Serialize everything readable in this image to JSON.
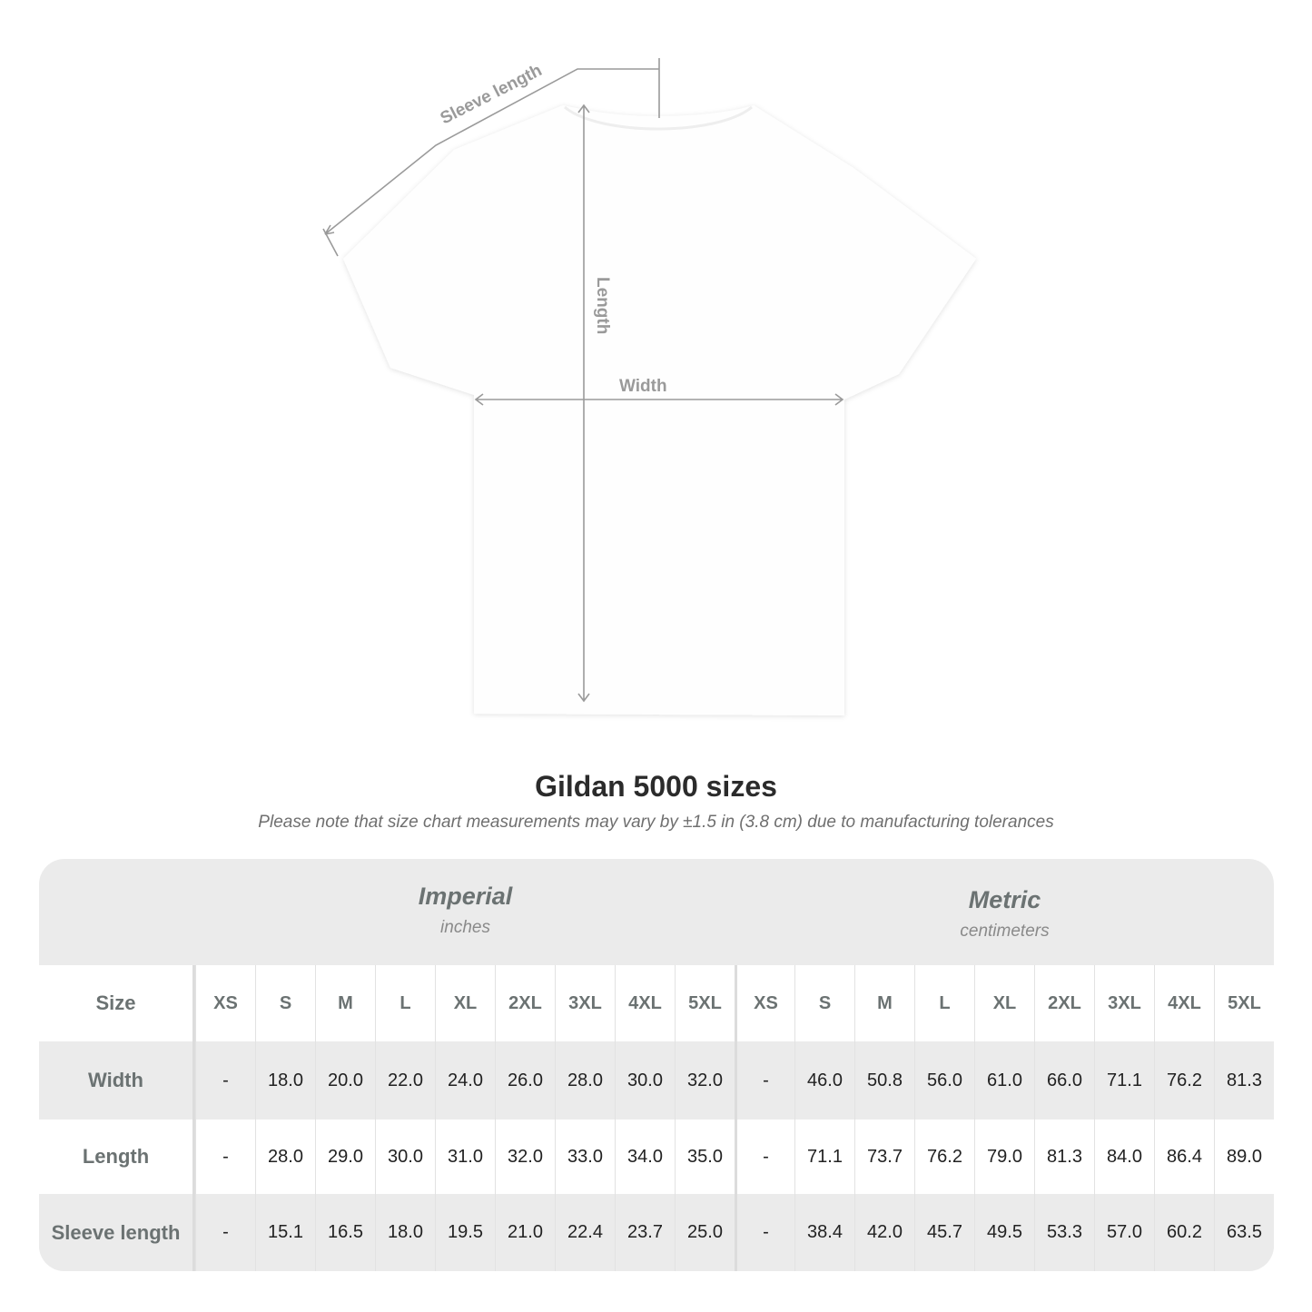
{
  "diagram": {
    "labels": {
      "sleeve": "Sleeve length",
      "length": "Length",
      "width": "Width"
    },
    "line_color": "#9a9a9a",
    "shirt_color": "#ffffff"
  },
  "title": "Gildan 5000 sizes",
  "note": "Please note that size chart measurements may vary by ±1.5 in (3.8 cm) due to manufacturing tolerances",
  "table": {
    "imperial": {
      "name": "Imperial",
      "unit": "inches"
    },
    "metric": {
      "name": "Metric",
      "unit": "centimeters"
    },
    "size_label": "Size",
    "sizes": [
      "XS",
      "S",
      "M",
      "L",
      "XL",
      "2XL",
      "3XL",
      "4XL",
      "5XL"
    ],
    "rows": [
      {
        "label": "Width",
        "imperial": [
          "-",
          "18.0",
          "20.0",
          "22.0",
          "24.0",
          "26.0",
          "28.0",
          "30.0",
          "32.0"
        ],
        "metric": [
          "-",
          "46.0",
          "50.8",
          "56.0",
          "61.0",
          "66.0",
          "71.1",
          "76.2",
          "81.3"
        ]
      },
      {
        "label": "Length",
        "imperial": [
          "-",
          "28.0",
          "29.0",
          "30.0",
          "31.0",
          "32.0",
          "33.0",
          "34.0",
          "35.0"
        ],
        "metric": [
          "-",
          "71.1",
          "73.7",
          "76.2",
          "79.0",
          "81.3",
          "84.0",
          "86.4",
          "89.0"
        ]
      },
      {
        "label": "Sleeve length",
        "imperial": [
          "-",
          "15.1",
          "16.5",
          "18.0",
          "19.5",
          "21.0",
          "22.4",
          "23.7",
          "25.0"
        ],
        "metric": [
          "-",
          "38.4",
          "42.0",
          "45.7",
          "49.5",
          "53.3",
          "57.0",
          "60.2",
          "63.5"
        ]
      }
    ]
  }
}
